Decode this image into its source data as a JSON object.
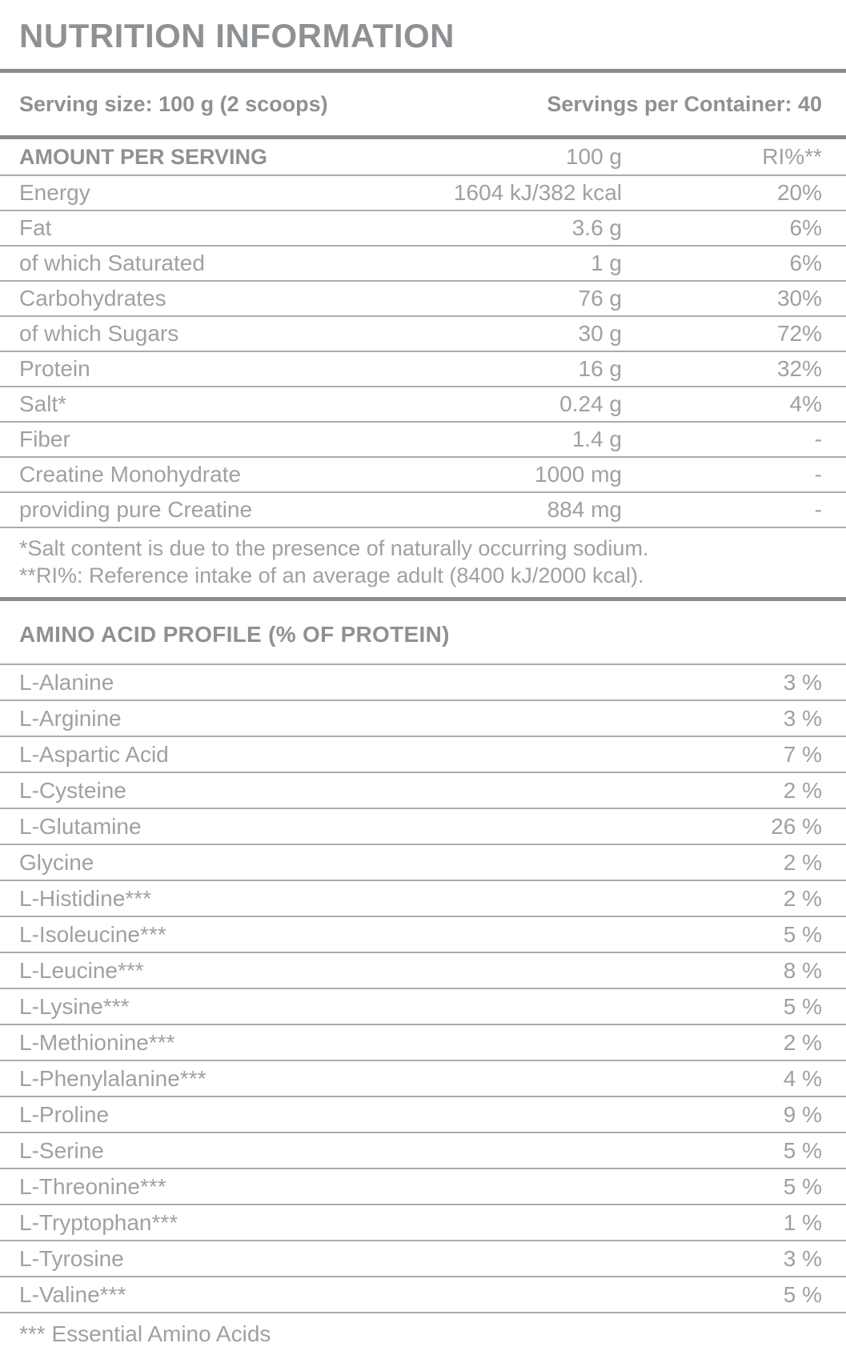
{
  "title": "NUTRITION INFORMATION",
  "serving": {
    "size_label": "Serving size: 100 g (2 scoops)",
    "per_container_label": "Servings per Container: 40"
  },
  "nutrition_table": {
    "headers": [
      "AMOUNT PER SERVING",
      "100 g",
      "RI%**"
    ],
    "rows": [
      [
        "Energy",
        "1604 kJ/382 kcal",
        "20%"
      ],
      [
        "Fat",
        "3.6 g",
        "6%"
      ],
      [
        "of which Saturated",
        "1 g",
        "6%"
      ],
      [
        "Carbohydrates",
        "76 g",
        "30%"
      ],
      [
        "of which Sugars",
        "30 g",
        "72%"
      ],
      [
        "Protein",
        "16 g",
        "32%"
      ],
      [
        "Salt*",
        "0.24 g",
        "4%"
      ],
      [
        "Fiber",
        "1.4 g",
        "-"
      ],
      [
        "Creatine Monohydrate",
        "1000 mg",
        "-"
      ],
      [
        "providing pure Creatine",
        "884 mg",
        "-"
      ]
    ],
    "footnotes": {
      "salt": "*Salt content is due to the presence of naturally occurring sodium.",
      "ri": "**RI%: Reference intake of an average adult (8400 kJ/2000 kcal)."
    }
  },
  "amino_section": {
    "heading": "AMINO ACID PROFILE (% OF PROTEIN)",
    "rows": [
      [
        "L-Alanine",
        "3 %"
      ],
      [
        "L-Arginine",
        "3 %"
      ],
      [
        "L-Aspartic Acid",
        "7 %"
      ],
      [
        "L-Cysteine",
        "2 %"
      ],
      [
        "L-Glutamine",
        "26 %"
      ],
      [
        "Glycine",
        "2 %"
      ],
      [
        "L-Histidine***",
        "2 %"
      ],
      [
        "L-Isoleucine***",
        "5 %"
      ],
      [
        "L-Leucine***",
        "8 %"
      ],
      [
        "L-Lysine***",
        "5 %"
      ],
      [
        "L-Methionine***",
        "2 %"
      ],
      [
        "L-Phenylalanine***",
        "4 %"
      ],
      [
        "L-Proline",
        "9 %"
      ],
      [
        "L-Serine",
        "5 %"
      ],
      [
        "L-Threonine***",
        "5 %"
      ],
      [
        "L-Tryptophan***",
        "1 %"
      ],
      [
        "L-Tyrosine",
        "3 %"
      ],
      [
        "L-Valine***",
        "5 %"
      ]
    ],
    "footnote": "*** Essential Amino Acids"
  },
  "colors": {
    "text": "#9ea1a4",
    "bold": "#8e9194",
    "thin": "#a9acae",
    "thick": "#898c8f",
    "bg": "#ffffff"
  }
}
